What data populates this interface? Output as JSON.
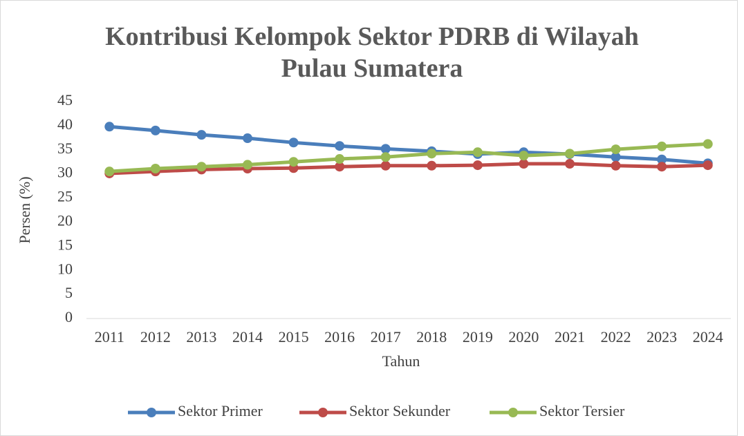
{
  "chart_data": {
    "type": "line",
    "title": "Kontribusi Kelompok Sektor PDRB di Wilayah Pulau Sumatera",
    "x_label": "Tahun",
    "y_label": "Persen (%)",
    "categories": [
      "2011",
      "2012",
      "2013",
      "2014",
      "2015",
      "2016",
      "2017",
      "2018",
      "2019",
      "2020",
      "2021",
      "2022",
      "2023",
      "2024"
    ],
    "series": [
      {
        "name": "Sektor Primer",
        "color": "#4a7ebb",
        "values": [
          39.8,
          39.0,
          38.1,
          37.4,
          36.5,
          35.8,
          35.2,
          34.7,
          34.1,
          34.5,
          34.1,
          33.5,
          33.0,
          32.2
        ]
      },
      {
        "name": "Sektor Sekunder",
        "color": "#be4b48",
        "values": [
          30.1,
          30.5,
          30.9,
          31.1,
          31.2,
          31.5,
          31.7,
          31.7,
          31.8,
          32.1,
          32.1,
          31.7,
          31.5,
          31.8
        ]
      },
      {
        "name": "Sektor Tersier",
        "color": "#98b954",
        "values": [
          30.5,
          31.1,
          31.5,
          31.9,
          32.5,
          33.1,
          33.5,
          34.2,
          34.5,
          33.8,
          34.2,
          35.1,
          35.7,
          36.2
        ]
      }
    ],
    "ylim": [
      0,
      45
    ],
    "yticks": [
      0,
      5,
      10,
      15,
      20,
      25,
      30,
      35,
      40,
      45
    ],
    "grid": false,
    "legend": "bottom"
  }
}
